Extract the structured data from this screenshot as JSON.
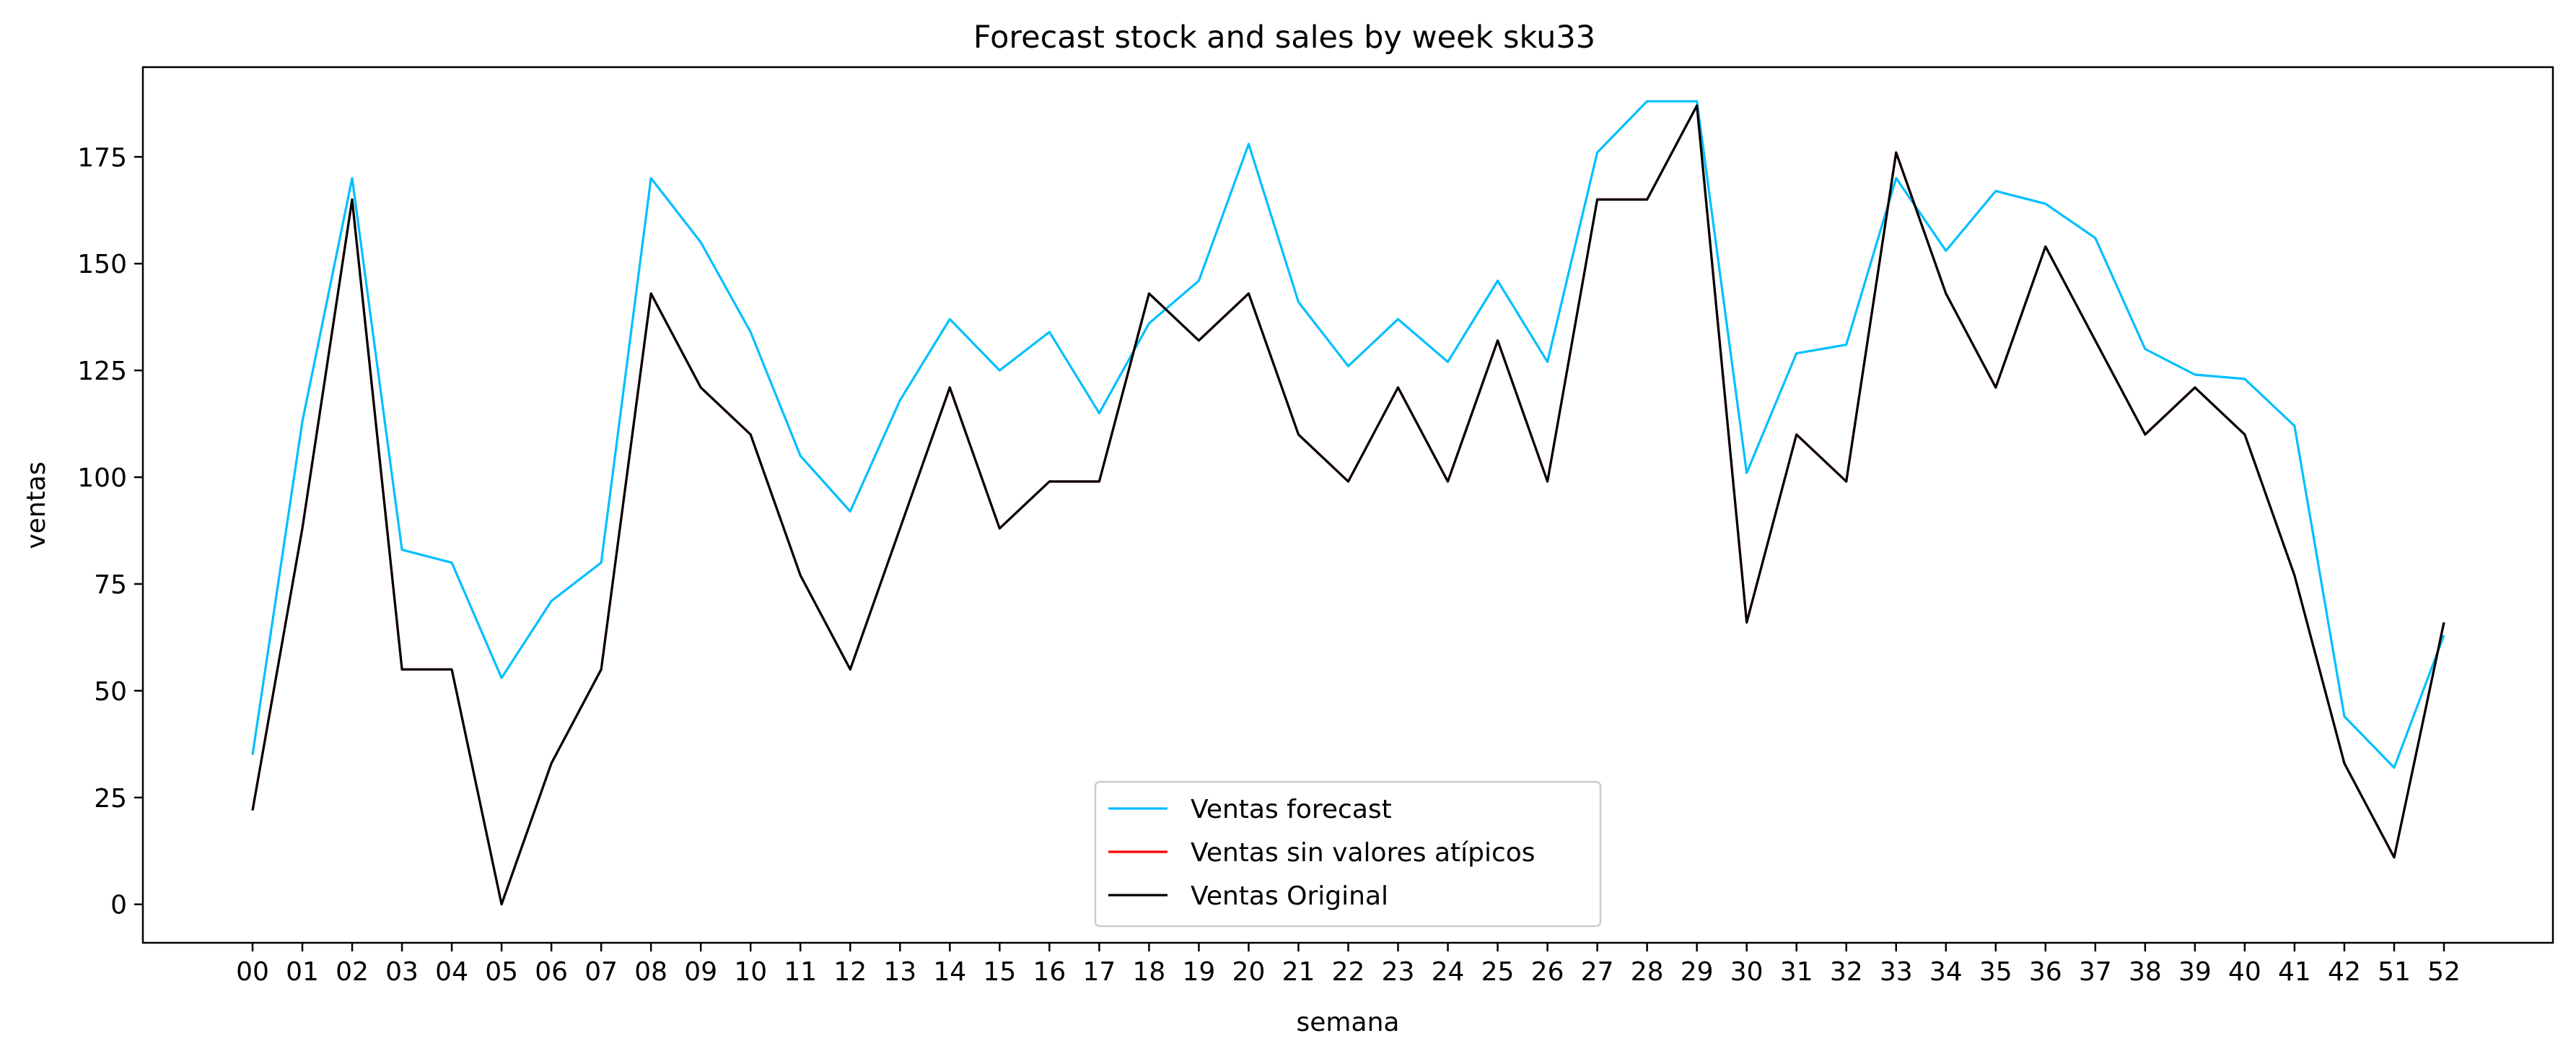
{
  "chart_data": {
    "type": "line",
    "title": "Forecast stock and sales by week sku33",
    "xlabel": "semana",
    "ylabel": "ventas",
    "categories": [
      "00",
      "01",
      "02",
      "03",
      "04",
      "05",
      "06",
      "07",
      "08",
      "09",
      "10",
      "11",
      "12",
      "13",
      "14",
      "15",
      "16",
      "17",
      "18",
      "19",
      "20",
      "21",
      "22",
      "23",
      "24",
      "25",
      "26",
      "27",
      "28",
      "29",
      "30",
      "31",
      "32",
      "33",
      "34",
      "35",
      "36",
      "37",
      "38",
      "39",
      "40",
      "41",
      "42",
      "51",
      "52"
    ],
    "ylim": [
      -9,
      196
    ],
    "yticks": [
      0,
      25,
      50,
      75,
      100,
      125,
      150,
      175
    ],
    "grid": false,
    "legend_position": "bottom-center",
    "series": [
      {
        "name": "Ventas forecast",
        "color": "#00bfff",
        "values": [
          35,
          113,
          170,
          83,
          80,
          53,
          71,
          80,
          170,
          155,
          134,
          105,
          92,
          118,
          137,
          125,
          134,
          115,
          136,
          146,
          178,
          141,
          126,
          137,
          127,
          146,
          127,
          176,
          188,
          188,
          101,
          129,
          131,
          170,
          153,
          167,
          164,
          156,
          130,
          124,
          123,
          112,
          44,
          32,
          63
        ]
      },
      {
        "name": "Ventas sin valores atípicos",
        "color": "#ff0000",
        "values": [
          22,
          88,
          165,
          55,
          55,
          0,
          33,
          55,
          143,
          121,
          110,
          77,
          55,
          88,
          121,
          88,
          99,
          99,
          143,
          132,
          143,
          110,
          99,
          121,
          99,
          132,
          99,
          165,
          165,
          187,
          66,
          110,
          99,
          176,
          143,
          121,
          154,
          132,
          110,
          121,
          110,
          77,
          33,
          11,
          66
        ]
      },
      {
        "name": "Ventas Original",
        "color": "#000000",
        "values": [
          22,
          88,
          165,
          55,
          55,
          0,
          33,
          55,
          143,
          121,
          110,
          77,
          55,
          88,
          121,
          88,
          99,
          99,
          143,
          132,
          143,
          110,
          99,
          121,
          99,
          132,
          99,
          165,
          165,
          187,
          66,
          110,
          99,
          176,
          143,
          121,
          154,
          132,
          110,
          121,
          110,
          77,
          33,
          11,
          66
        ]
      }
    ]
  }
}
